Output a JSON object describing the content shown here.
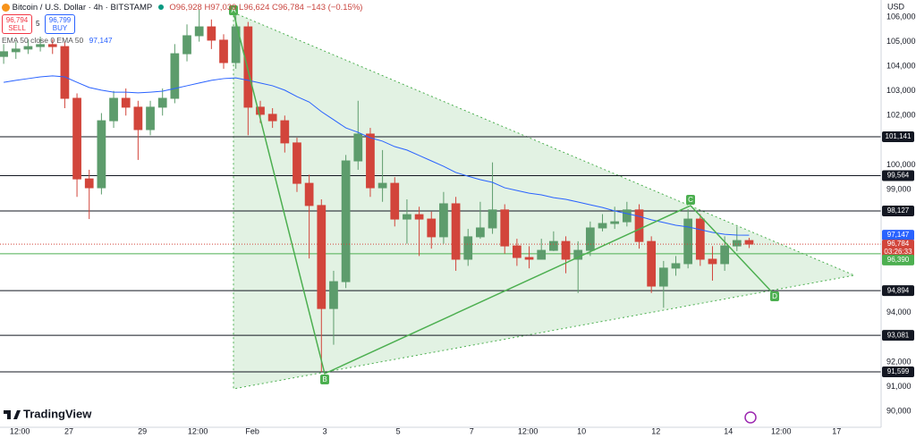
{
  "header": {
    "symbol": "Bitcoin / U.S. Dollar · 4h · BITSTAMP",
    "ohlc": [
      "O96,928",
      "H97,039",
      "L96,624",
      "C96,784",
      "−143 (−0.15%)"
    ],
    "sell_price": "96,794",
    "sell_label": "SELL",
    "spread": "5",
    "buy_price": "96,799",
    "buy_label": "BUY"
  },
  "branding": "TradingView",
  "chart_data": {
    "type": "candlestick",
    "currency": "USD",
    "up_color": "#5d9c6c",
    "down_color": "#d2453b",
    "open": [
      104400,
      104590,
      104700,
      104800,
      104880,
      104800,
      102700,
      99430,
      99070,
      101790,
      102700,
      102340,
      101430,
      102340,
      102700,
      104510,
      105240,
      105600,
      105060,
      104150,
      105600,
      102340,
      102050,
      101790,
      100890,
      99250,
      98350,
      94170,
      95260,
      100160,
      101250,
      99070,
      99250,
      97800,
      97980,
      97800,
      97080,
      98420,
      96170,
      97080,
      97440,
      98170,
      96710,
      96240,
      96170,
      96530,
      96890,
      96170,
      96530,
      97440,
      97620,
      97690,
      98170,
      96890,
      95080,
      95810,
      95990,
      97800,
      96170,
      95990,
      96710,
      96928
    ],
    "high": [
      104900,
      105000,
      105100,
      105200,
      105100,
      105000,
      102900,
      99800,
      102100,
      103000,
      103100,
      102600,
      102600,
      103100,
      104900,
      105700,
      106300,
      105900,
      105300,
      106200,
      105800,
      102600,
      102300,
      102000,
      101100,
      99600,
      98600,
      95700,
      100400,
      102600,
      101500,
      100600,
      99500,
      98600,
      98300,
      98100,
      98900,
      98700,
      97400,
      98500,
      100100,
      98400,
      97000,
      96700,
      97000,
      97300,
      97100,
      96900,
      97700,
      98000,
      98300,
      98500,
      98400,
      97100,
      96100,
      96300,
      98200,
      98000,
      96700,
      97100,
      97500,
      97039
    ],
    "low": [
      104100,
      104300,
      104500,
      104600,
      104500,
      102300,
      98700,
      97800,
      98800,
      101500,
      102000,
      100200,
      101200,
      102000,
      102500,
      104200,
      105000,
      104700,
      103900,
      103900,
      101200,
      101700,
      101500,
      100500,
      98900,
      96200,
      91600,
      92700,
      95000,
      99800,
      98700,
      98500,
      97500,
      96800,
      96300,
      96600,
      96800,
      95700,
      95900,
      97000,
      97200,
      96400,
      95900,
      95800,
      96200,
      96500,
      95600,
      94800,
      96300,
      97300,
      97400,
      97500,
      96600,
      94800,
      94200,
      95500,
      95800,
      95900,
      95300,
      95700,
      96500,
      96624
    ],
    "close": [
      104590,
      104700,
      104800,
      104880,
      104800,
      102700,
      99430,
      99070,
      101790,
      102700,
      102340,
      101430,
      102340,
      102700,
      104510,
      105240,
      105600,
      105060,
      104150,
      105600,
      102340,
      102050,
      101790,
      100890,
      99250,
      98350,
      94170,
      95260,
      100160,
      101250,
      99070,
      99250,
      97800,
      97980,
      97800,
      97080,
      98420,
      96170,
      97080,
      97440,
      98170,
      96710,
      96240,
      96170,
      96530,
      96890,
      96170,
      96530,
      97440,
      97620,
      97690,
      98170,
      96890,
      95080,
      95810,
      95990,
      97800,
      96170,
      95990,
      96710,
      96928,
      96784
    ],
    "indicator": {
      "name": "EMA 50 close 0 EMA 50",
      "color": "#2962ff",
      "value_label": "97,147",
      "values": [
        103350,
        103430,
        103500,
        103570,
        103610,
        103570,
        103350,
        103140,
        103030,
        102950,
        102950,
        102920,
        102950,
        102990,
        103100,
        103210,
        103320,
        103430,
        103500,
        103530,
        103430,
        103320,
        103210,
        103030,
        102770,
        102550,
        102160,
        101830,
        101500,
        101320,
        101100,
        100960,
        100740,
        100600,
        100380,
        100160,
        99940,
        99690,
        99540,
        99400,
        99290,
        99070,
        98960,
        98850,
        98780,
        98670,
        98600,
        98490,
        98380,
        98270,
        98130,
        98020,
        97910,
        97770,
        97660,
        97550,
        97480,
        97370,
        97260,
        97180,
        97150,
        97147
      ]
    },
    "last_price_label": "96,784",
    "countdown": "03:26:33",
    "levels": [
      {
        "value": 101141,
        "label": "101,141"
      },
      {
        "value": 99564,
        "label": "99,564"
      },
      {
        "value": 98127,
        "label": "98,127"
      },
      {
        "value": 94894,
        "label": "94,894"
      },
      {
        "value": 93081,
        "label": "93,081"
      },
      {
        "value": 91599,
        "label": "91,599"
      }
    ],
    "support_level": {
      "value": 96390,
      "label": "96,390"
    },
    "pattern_points": [
      "A",
      "B",
      "C",
      "D"
    ],
    "ylim": [
      89350,
      106690
    ],
    "yticks": [
      {
        "value": 90000,
        "label": "90,000"
      },
      {
        "value": 91000,
        "label": "91,000"
      },
      {
        "value": 92000,
        "label": "92,000"
      },
      {
        "value": 94000,
        "label": "94,000"
      },
      {
        "value": 99000,
        "label": "99,000"
      },
      {
        "value": 100000,
        "label": "100,000"
      },
      {
        "value": 102000,
        "label": "102,000"
      },
      {
        "value": 103000,
        "label": "103,000"
      },
      {
        "value": 104000,
        "label": "104,000"
      },
      {
        "value": 105000,
        "label": "105,000"
      },
      {
        "value": 106000,
        "label": "106,000"
      }
    ],
    "xlim": [
      -0.3,
      71.8
    ],
    "xticks": [
      {
        "value": 1.32,
        "label": "12:00"
      },
      {
        "value": 5.34,
        "label": "27"
      },
      {
        "value": 11.35,
        "label": "29"
      },
      {
        "value": 15.89,
        "label": "12:00"
      },
      {
        "value": 20.35,
        "label": "Feb"
      },
      {
        "value": 26.28,
        "label": "3"
      },
      {
        "value": 32.28,
        "label": "5"
      },
      {
        "value": 38.29,
        "label": "7"
      },
      {
        "value": 42.9,
        "label": "12:00"
      },
      {
        "value": 47.29,
        "label": "10"
      },
      {
        "value": 53.37,
        "label": "12"
      },
      {
        "value": 59.3,
        "label": "14"
      },
      {
        "value": 63.62,
        "label": "12:00"
      },
      {
        "value": 68.16,
        "label": "17"
      }
    ],
    "grid": false
  }
}
